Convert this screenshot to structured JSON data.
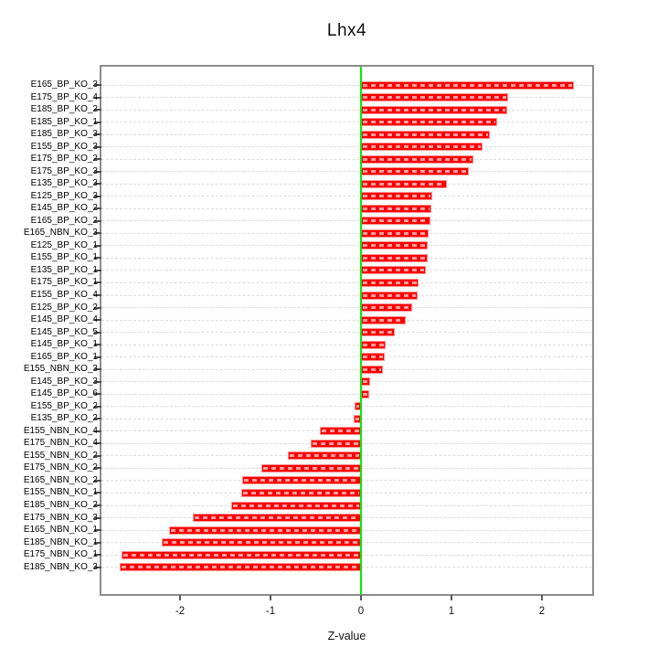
{
  "chart_data": {
    "type": "bar",
    "orientation": "horizontal",
    "title": "Lhx4",
    "xlabel": "Z-value",
    "categories": [
      "E165_BP_KO_3",
      "E175_BP_KO_4",
      "E185_BP_KO_2",
      "E185_BP_KO_1",
      "E185_BP_KO_3",
      "E155_BP_KO_3",
      "E175_BP_KO_2",
      "E175_BP_KO_3",
      "E135_BP_KO_3",
      "E125_BP_KO_3",
      "E145_BP_KO_2",
      "E165_BP_KO_2",
      "E165_NBN_KO_3",
      "E125_BP_KO_1",
      "E155_BP_KO_1",
      "E135_BP_KO_1",
      "E175_BP_KO_1",
      "E155_BP_KO_4",
      "E125_BP_KO_2",
      "E145_BP_KO_4",
      "E145_BP_KO_5",
      "E145_BP_KO_1",
      "E165_BP_KO_1",
      "E155_NBN_KO_3",
      "E145_BP_KO_3",
      "E145_BP_KO_6",
      "E155_BP_KO_2",
      "E135_BP_KO_2",
      "E155_NBN_KO_4",
      "E175_NBN_KO_4",
      "E155_NBN_KO_2",
      "E175_NBN_KO_2",
      "E165_NBN_KO_2",
      "E155_NBN_KO_1",
      "E185_NBN_KO_2",
      "E175_NBN_KO_3",
      "E165_NBN_KO_1",
      "E185_NBN_KO_1",
      "E175_NBN_KO_1",
      "E185_NBN_KO_3"
    ],
    "values": [
      2.35,
      1.63,
      1.62,
      1.5,
      1.42,
      1.34,
      1.24,
      1.19,
      0.95,
      0.79,
      0.78,
      0.77,
      0.75,
      0.74,
      0.74,
      0.72,
      0.64,
      0.63,
      0.57,
      0.49,
      0.37,
      0.27,
      0.26,
      0.24,
      0.1,
      0.09,
      -0.07,
      -0.08,
      -0.45,
      -0.56,
      -0.81,
      -1.1,
      -1.31,
      -1.32,
      -1.43,
      -1.86,
      -2.12,
      -2.2,
      -2.65,
      -2.67
    ],
    "x_ticks": [
      -2,
      -1,
      0,
      1,
      2
    ],
    "xlim": [
      -2.87,
      2.56
    ],
    "grid": "horizontal dashed line per category",
    "zero_reference_line": 0,
    "legend": "none",
    "colors": {
      "bar_fill": "#fb0000",
      "bar_border": "#ff9090",
      "zero_line": "#00ee00",
      "gridline": "#dcdcdc",
      "plot_border": "#8c8c8c",
      "text": "#000000"
    }
  }
}
